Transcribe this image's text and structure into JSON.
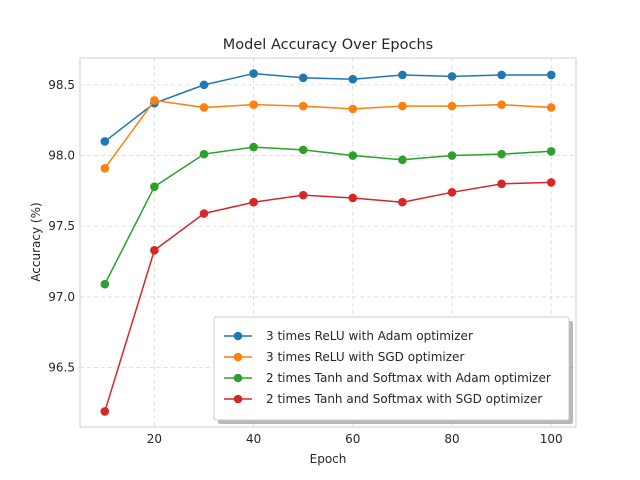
{
  "chart_data": {
    "type": "line",
    "title": "Model Accuracy Over Epochs",
    "xlabel": "Epoch",
    "ylabel": "Accuracy (%)",
    "x": [
      10,
      20,
      30,
      40,
      50,
      60,
      70,
      80,
      90,
      100
    ],
    "xlim": [
      5,
      105
    ],
    "ylim": [
      96.08,
      98.69
    ],
    "xticks": [
      20,
      40,
      60,
      80,
      100
    ],
    "yticks": [
      96.5,
      97.0,
      97.5,
      98.0,
      98.5
    ],
    "xtick_labels": [
      "20",
      "40",
      "60",
      "80",
      "100"
    ],
    "ytick_labels": [
      "96.5",
      "97.0",
      "97.5",
      "98.0",
      "98.5"
    ],
    "grid": true,
    "legend_position": "lower-right",
    "series": [
      {
        "name": "3 times ReLU with Adam optimizer",
        "color": "#1f77b4",
        "values": [
          98.1,
          98.37,
          98.5,
          98.58,
          98.55,
          98.54,
          98.57,
          98.56,
          98.57,
          98.57
        ]
      },
      {
        "name": "3 times ReLU with SGD optimizer",
        "color": "#ff7f0e",
        "values": [
          97.91,
          98.39,
          98.34,
          98.36,
          98.35,
          98.33,
          98.35,
          98.35,
          98.36,
          98.34
        ]
      },
      {
        "name": "2 times Tanh and Softmax with Adam optimizer",
        "color": "#2ca02c",
        "values": [
          97.09,
          97.78,
          98.01,
          98.06,
          98.04,
          98.0,
          97.97,
          98.0,
          98.01,
          98.03
        ]
      },
      {
        "name": "2 times Tanh and Softmax with SGD optimizer",
        "color": "#d62728",
        "values": [
          96.19,
          97.33,
          97.59,
          97.67,
          97.72,
          97.7,
          97.67,
          97.74,
          97.8,
          97.81
        ]
      }
    ]
  }
}
